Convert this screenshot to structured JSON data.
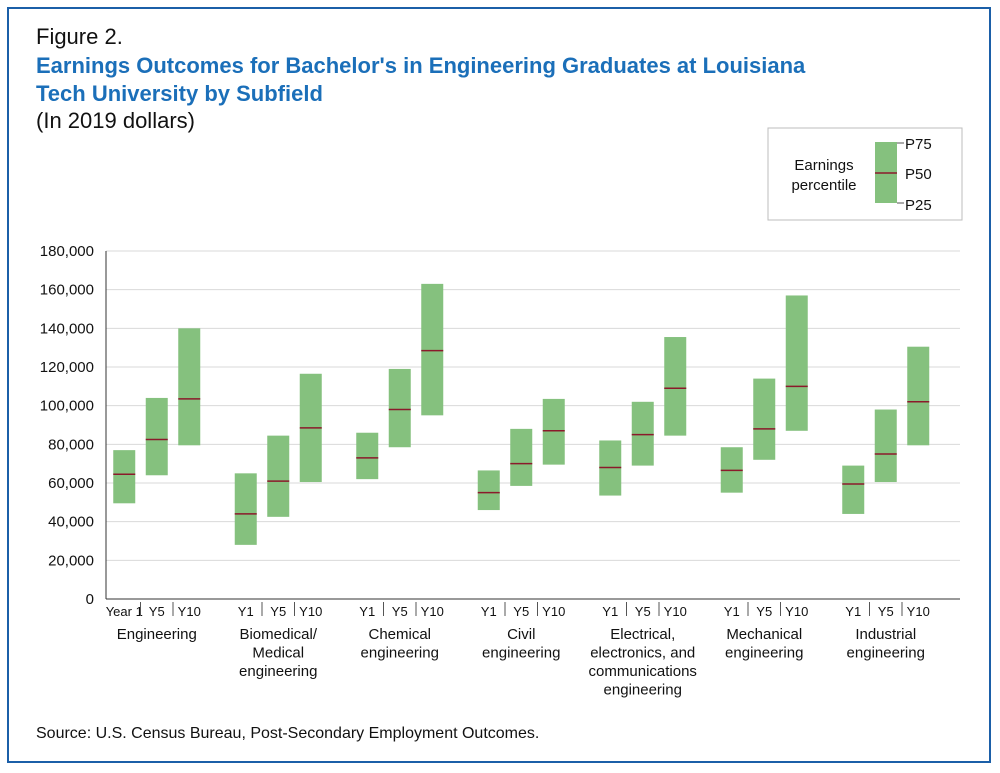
{
  "figure_label": "Figure 2.",
  "title": "Earnings Outcomes for Bachelor's in Engineering Graduates at Louisiana Tech University by Subfield",
  "subtitle": "(In 2019 dollars)",
  "source": "Source: U.S. Census Bureau, Post-Secondary Employment Outcomes.",
  "legend": {
    "label_lines": [
      "Earnings",
      "percentile"
    ],
    "p75": "P75",
    "p50": "P50",
    "p25": "P25"
  },
  "colors": {
    "box_fill": "#85c17e",
    "median_line": "#8b1a2b",
    "grid": "#d9d9d9",
    "title": "#1b6fb9",
    "frame": "#1b5fa8"
  },
  "chart_data": {
    "type": "floating-bar",
    "ylim": [
      0,
      180000
    ],
    "yticks": [
      "0",
      "20,000",
      "40,000",
      "60,000",
      "80,000",
      "100,000",
      "120,000",
      "140,000",
      "160,000",
      "180,000"
    ],
    "grid": true,
    "legend_position": "top-right",
    "groups": [
      {
        "label_lines": [
          "Engineering"
        ],
        "bars": [
          {
            "period": "Year 1",
            "p25": 49500,
            "p50": 64500,
            "p75": 77000
          },
          {
            "period": "Y5",
            "p25": 64000,
            "p50": 82500,
            "p75": 104000
          },
          {
            "period": "Y10",
            "p25": 79500,
            "p50": 103500,
            "p75": 140000
          }
        ]
      },
      {
        "label_lines": [
          "Biomedical/",
          "Medical",
          "engineering"
        ],
        "bars": [
          {
            "period": "Y1",
            "p25": 28000,
            "p50": 44000,
            "p75": 65000
          },
          {
            "period": "Y5",
            "p25": 42500,
            "p50": 61000,
            "p75": 84500
          },
          {
            "period": "Y10",
            "p25": 60500,
            "p50": 88500,
            "p75": 116500
          }
        ]
      },
      {
        "label_lines": [
          "Chemical",
          "engineering"
        ],
        "bars": [
          {
            "period": "Y1",
            "p25": 62000,
            "p50": 73000,
            "p75": 86000
          },
          {
            "period": "Y5",
            "p25": 78500,
            "p50": 98000,
            "p75": 119000
          },
          {
            "period": "Y10",
            "p25": 95000,
            "p50": 128500,
            "p75": 163000
          }
        ]
      },
      {
        "label_lines": [
          "Civil",
          "engineering"
        ],
        "bars": [
          {
            "period": "Y1",
            "p25": 46000,
            "p50": 55000,
            "p75": 66500
          },
          {
            "period": "Y5",
            "p25": 58500,
            "p50": 70000,
            "p75": 88000
          },
          {
            "period": "Y10",
            "p25": 69500,
            "p50": 87000,
            "p75": 103500
          }
        ]
      },
      {
        "label_lines": [
          "Electrical,",
          "electronics, and",
          "communications",
          "engineering"
        ],
        "bars": [
          {
            "period": "Y1",
            "p25": 53500,
            "p50": 68000,
            "p75": 82000
          },
          {
            "period": "Y5",
            "p25": 69000,
            "p50": 85000,
            "p75": 102000
          },
          {
            "period": "Y10",
            "p25": 84500,
            "p50": 109000,
            "p75": 135500
          }
        ]
      },
      {
        "label_lines": [
          "Mechanical",
          "engineering"
        ],
        "bars": [
          {
            "period": "Y1",
            "p25": 55000,
            "p50": 66500,
            "p75": 78500
          },
          {
            "period": "Y5",
            "p25": 72000,
            "p50": 88000,
            "p75": 114000
          },
          {
            "period": "Y10",
            "p25": 87000,
            "p50": 110000,
            "p75": 157000
          }
        ]
      },
      {
        "label_lines": [
          "Industrial",
          "engineering"
        ],
        "bars": [
          {
            "period": "Y1",
            "p25": 44000,
            "p50": 59500,
            "p75": 69000
          },
          {
            "period": "Y5",
            "p25": 60500,
            "p50": 75000,
            "p75": 98000
          },
          {
            "period": "Y10",
            "p25": 79500,
            "p50": 102000,
            "p75": 130500
          }
        ]
      }
    ]
  }
}
